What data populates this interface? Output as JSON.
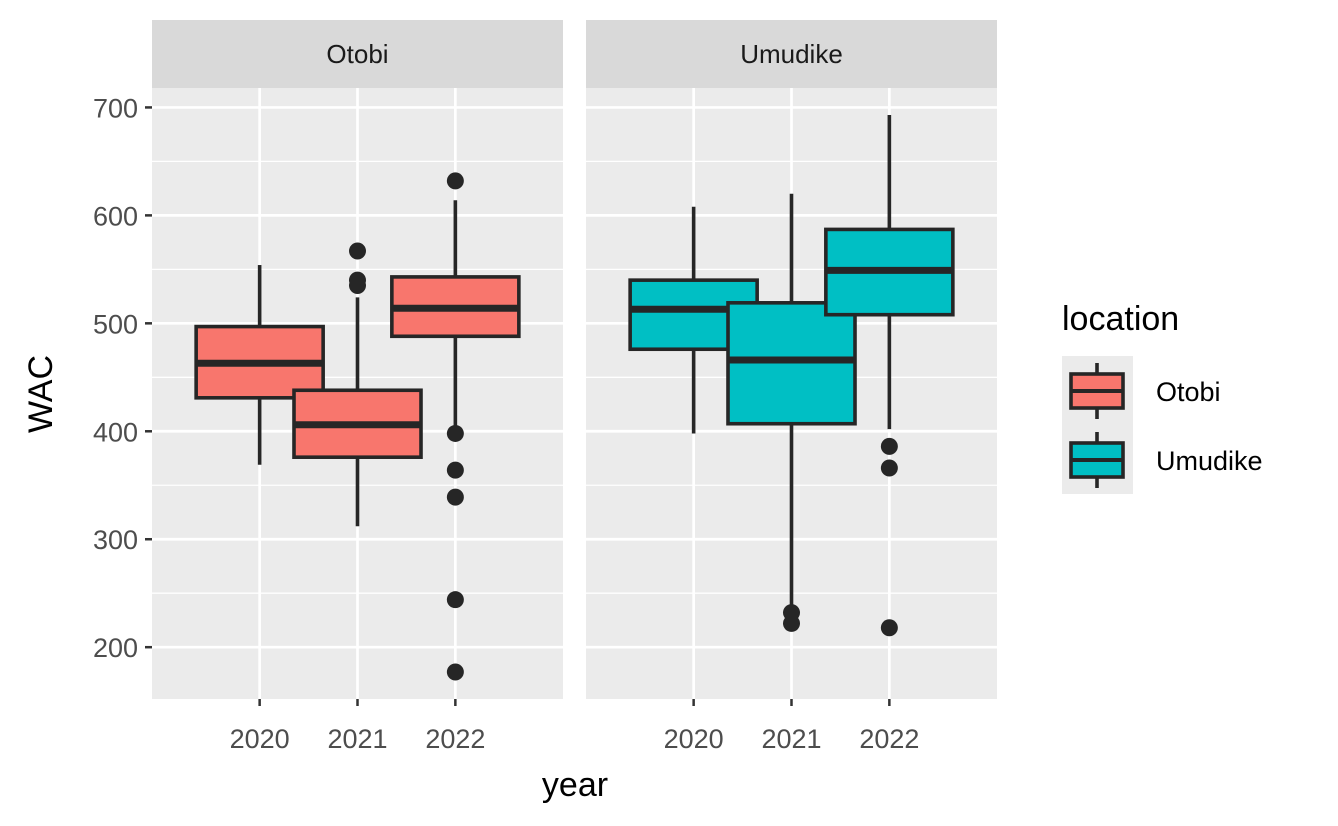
{
  "chart_data": {
    "type": "box",
    "xlabel": "year",
    "ylabel": "WAC",
    "ylim": [
      152,
      718
    ],
    "yticks": [
      200,
      300,
      400,
      500,
      600,
      700
    ],
    "ytick_labels": [
      "200",
      "300",
      "400",
      "500",
      "600",
      "700"
    ],
    "categories": [
      "2020",
      "2021",
      "2022"
    ],
    "legend": {
      "title": "location",
      "position": "right",
      "entries": [
        {
          "label": "Otobi",
          "color": "#F8766D"
        },
        {
          "label": "Umudike",
          "color": "#00BFC4"
        }
      ]
    },
    "panels": [
      {
        "title": "Otobi",
        "color": "#F8766D",
        "boxes": [
          {
            "year": "2020",
            "whisker_low": 369,
            "q1": 431,
            "median": 463,
            "q3": 497,
            "whisker_high": 554,
            "outliers": []
          },
          {
            "year": "2021",
            "whisker_low": 312,
            "q1": 376,
            "median": 406,
            "q3": 438,
            "whisker_high": 524,
            "outliers": [
              567,
              540,
              535
            ]
          },
          {
            "year": "2022",
            "whisker_low": 402,
            "q1": 488,
            "median": 514,
            "q3": 543,
            "whisker_high": 614,
            "outliers": [
              632,
              398,
              364,
              339,
              244,
              177
            ]
          }
        ]
      },
      {
        "title": "Umudike",
        "color": "#00BFC4",
        "boxes": [
          {
            "year": "2020",
            "whisker_low": 398,
            "q1": 476,
            "median": 513,
            "q3": 540,
            "whisker_high": 608,
            "outliers": []
          },
          {
            "year": "2021",
            "whisker_low": 238,
            "q1": 407,
            "median": 466,
            "q3": 519,
            "whisker_high": 620,
            "outliers": [
              232,
              222
            ]
          },
          {
            "year": "2022",
            "whisker_low": 402,
            "q1": 508,
            "median": 549,
            "q3": 587,
            "whisker_high": 693,
            "outliers": [
              386,
              366,
              218
            ]
          }
        ]
      }
    ]
  }
}
